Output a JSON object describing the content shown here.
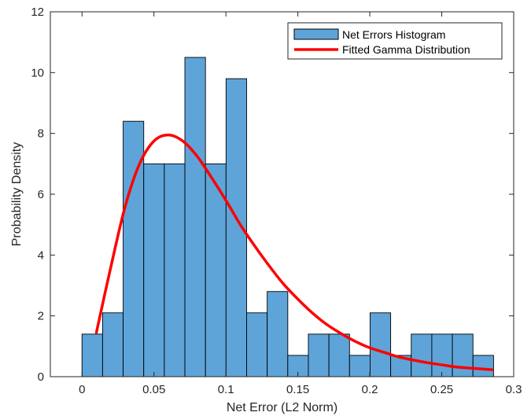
{
  "chart_data": {
    "type": "bar",
    "title": "",
    "xlabel": "Net Error (L2 Norm)",
    "ylabel": "Probability Density",
    "xlim": [
      -0.022,
      0.3
    ],
    "ylim": [
      0,
      12
    ],
    "xticks": [
      0,
      0.05,
      0.1,
      0.15,
      0.2,
      0.25,
      0.3
    ],
    "xtick_labels": [
      "0",
      "0.05",
      "0.1",
      "0.15",
      "0.2",
      "0.25",
      "0.3"
    ],
    "yticks": [
      0,
      2,
      4,
      6,
      8,
      10,
      12
    ],
    "ytick_labels": [
      "0",
      "2",
      "4",
      "6",
      "8",
      "10",
      "12"
    ],
    "grid": false,
    "legend_position": "top-right",
    "series": [
      {
        "name": "Net Errors Histogram",
        "kind": "histogram",
        "color": "#5fa4d8",
        "bin_start": 0.0,
        "bin_width": 0.0143,
        "values": [
          1.4,
          2.1,
          8.4,
          7.0,
          7.0,
          10.5,
          7.0,
          9.8,
          2.1,
          2.8,
          0.7,
          1.4,
          1.4,
          0.7,
          2.1,
          0.7,
          1.4,
          1.4,
          1.4,
          0.7
        ]
      },
      {
        "name": "Fitted Gamma Distribution",
        "kind": "line",
        "color": "#ff0000",
        "x": [
          0.01,
          0.02,
          0.03,
          0.04,
          0.05,
          0.06,
          0.07,
          0.08,
          0.09,
          0.1,
          0.11,
          0.12,
          0.13,
          0.14,
          0.15,
          0.16,
          0.17,
          0.18,
          0.19,
          0.2,
          0.21,
          0.22,
          0.23,
          0.24,
          0.25,
          0.26,
          0.27,
          0.285
        ],
        "y": [
          1.45,
          3.6,
          5.6,
          7.0,
          7.75,
          7.95,
          7.75,
          7.25,
          6.55,
          5.8,
          5.0,
          4.3,
          3.65,
          3.05,
          2.55,
          2.1,
          1.72,
          1.42,
          1.16,
          0.95,
          0.8,
          0.65,
          0.55,
          0.46,
          0.39,
          0.32,
          0.28,
          0.23
        ]
      }
    ]
  }
}
